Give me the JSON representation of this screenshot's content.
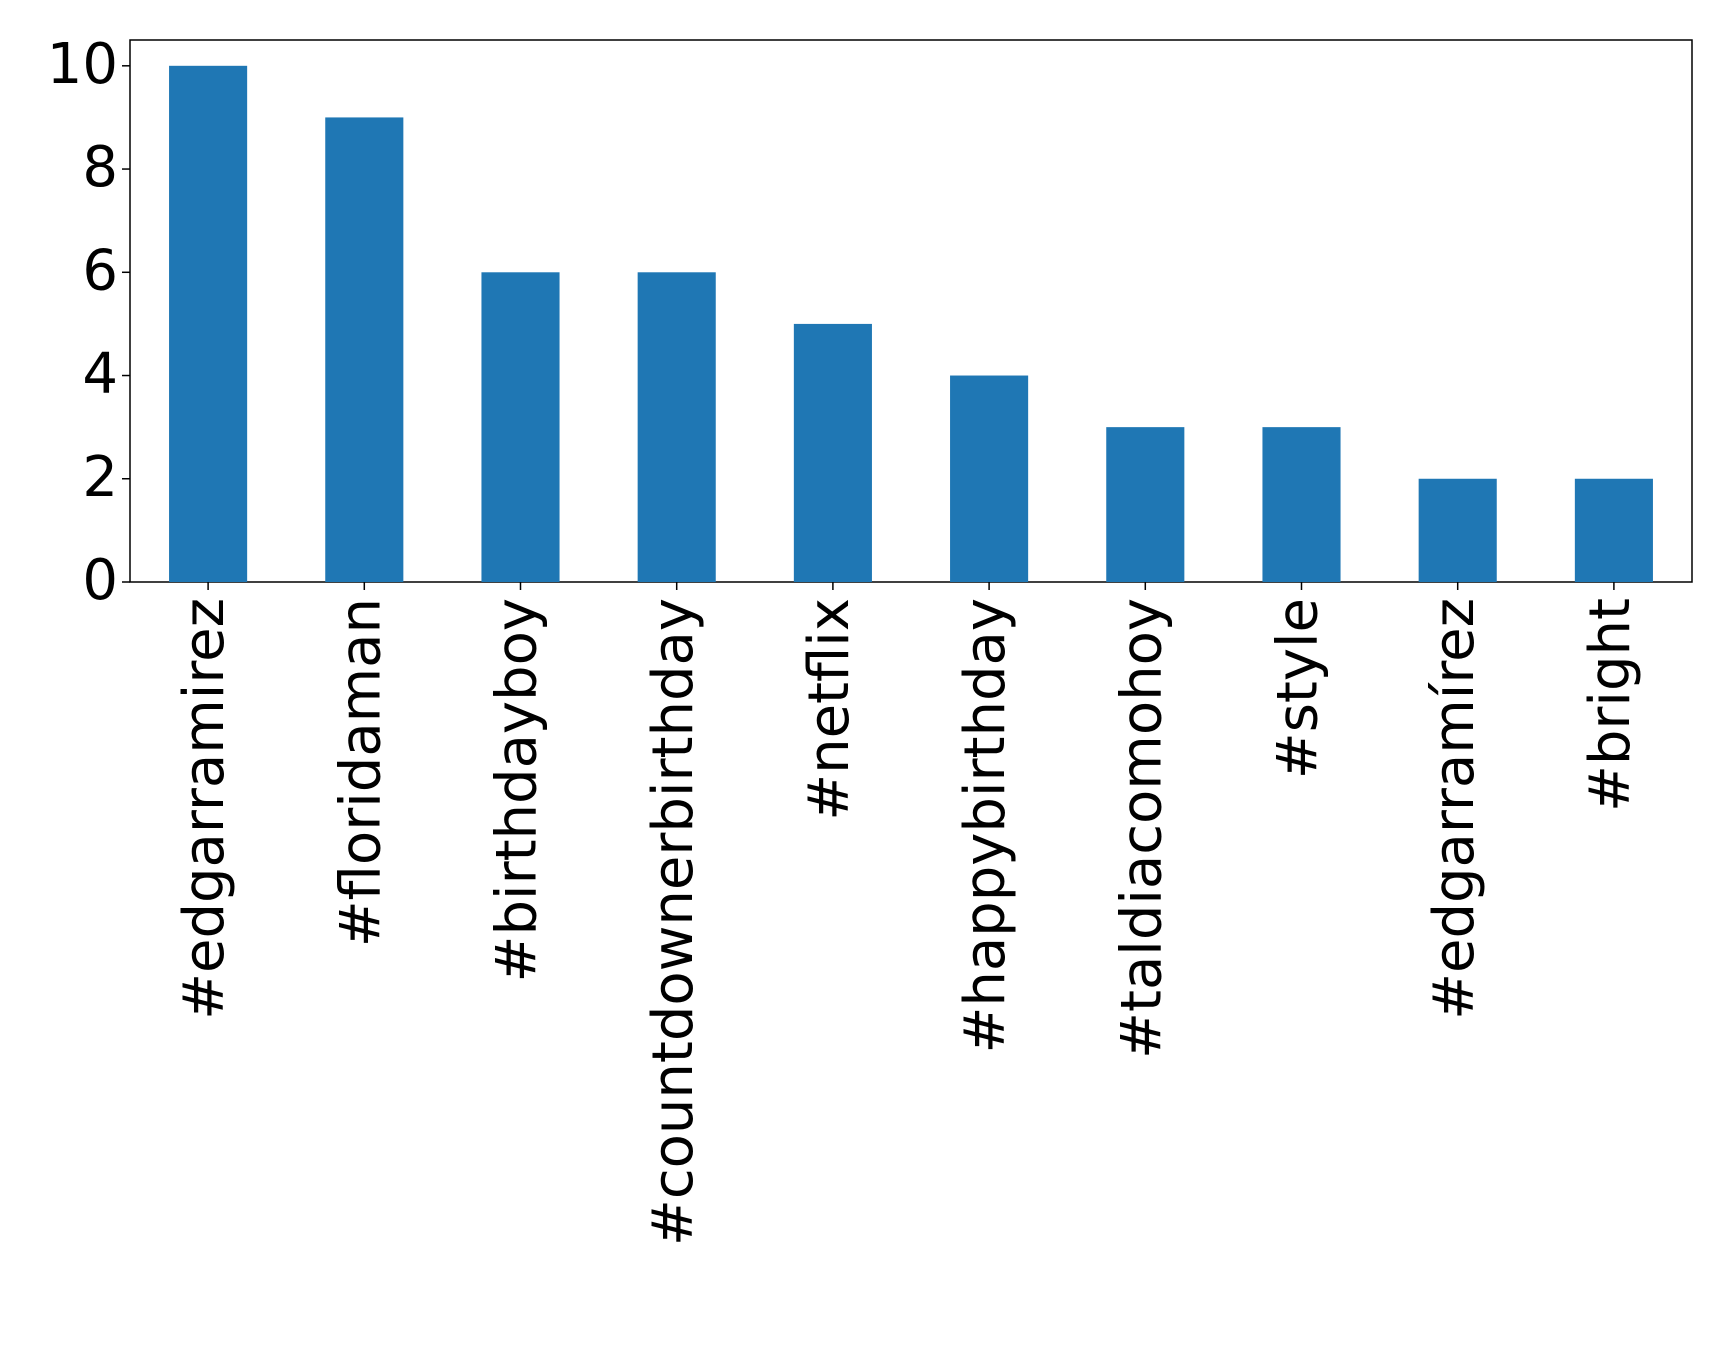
{
  "chart_data": {
    "type": "bar",
    "categories": [
      "#edgarramirez",
      "#floridaman",
      "#birthdayboy",
      "#countdownerbirthday",
      "#netflix",
      "#happybirthday",
      "#taldiacomohoy",
      "#style",
      "#edgarramírez",
      "#bright"
    ],
    "values": [
      10,
      9,
      6,
      6,
      5,
      4,
      3,
      3,
      2,
      2
    ],
    "color": "#1f77b4",
    "ylim": [
      0,
      10.5
    ],
    "yticks": [
      0,
      2,
      4,
      6,
      8,
      10
    ],
    "grid": false
  }
}
